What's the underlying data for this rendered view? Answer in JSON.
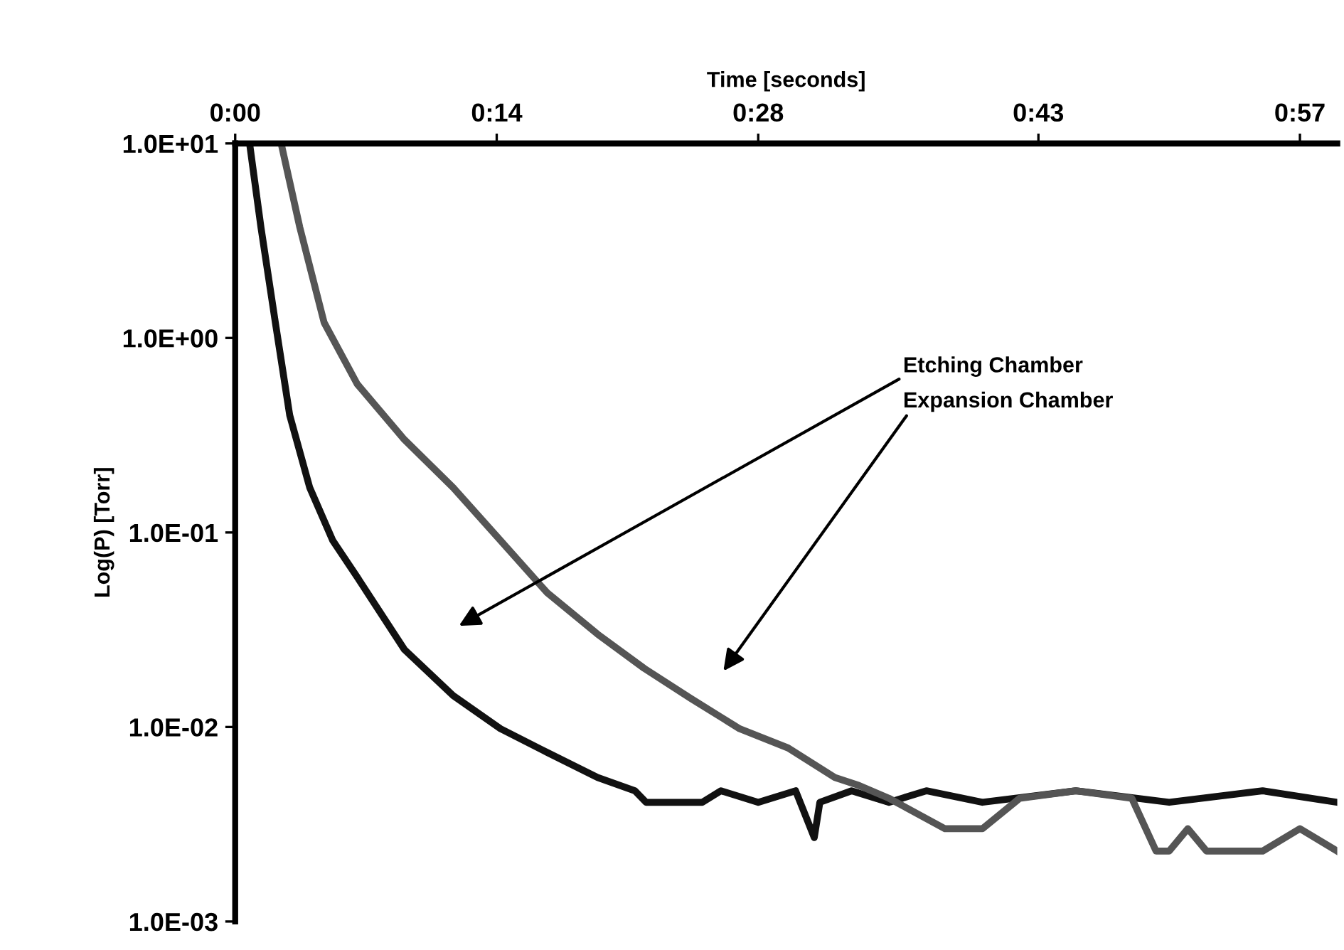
{
  "chart_data": {
    "type": "line",
    "xlabel": "Time [seconds]",
    "ylabel": "Log(P) [Torr]",
    "log": "y",
    "xlim": [
      0,
      59
    ],
    "xticks": [
      {
        "value": 0,
        "label": "0:00"
      },
      {
        "value": 14,
        "label": "0:14"
      },
      {
        "value": 28,
        "label": "0:28"
      },
      {
        "value": 43,
        "label": "0:43"
      },
      {
        "value": 57,
        "label": "0:57"
      }
    ],
    "ylim": [
      0.001,
      10
    ],
    "yticks": [
      {
        "value": 10,
        "label": "1.0E+01"
      },
      {
        "value": 1,
        "label": "1.0E+00"
      },
      {
        "value": 0.1,
        "label": "1.0E-01"
      },
      {
        "value": 0.01,
        "label": "1.0E-02"
      },
      {
        "value": 0.001,
        "label": "1.0E-03"
      }
    ],
    "grid": false,
    "series": [
      {
        "color": "#111111",
        "x": [
          0.77,
          1.38,
          2.15,
          2.92,
          3.99,
          5.22,
          6.53,
          9.06,
          11.67,
          14.2,
          16.7,
          19.4,
          21.4,
          22.0,
          25,
          26,
          28,
          30,
          31,
          31.3,
          33,
          35,
          37,
          40,
          45,
          50,
          55,
          59
        ],
        "values": [
          10,
          3.7,
          1.2,
          0.4,
          0.17,
          0.091,
          0.059,
          0.025,
          0.0145,
          0.0098,
          0.0074,
          0.0055,
          0.0047,
          0.0041,
          0.0041,
          0.0047,
          0.0041,
          0.0047,
          0.0027,
          0.0041,
          0.0047,
          0.0041,
          0.0047,
          0.0041,
          0.0047,
          0.0041,
          0.0047,
          0.0041
        ]
      },
      {
        "color": "#555555",
        "x": [
          2.46,
          3.46,
          4.76,
          6.53,
          9.06,
          11.67,
          14.2,
          16.7,
          19.4,
          21.9,
          24.4,
          27.0,
          29.6,
          32.1,
          33.4,
          35,
          38,
          40,
          42,
          45,
          48,
          49.3,
          50,
          51,
          52,
          55,
          57,
          59
        ],
        "values": [
          10,
          3.7,
          1.2,
          0.58,
          0.3,
          0.17,
          0.091,
          0.049,
          0.03,
          0.02,
          0.014,
          0.0098,
          0.0078,
          0.0055,
          0.005,
          0.0043,
          0.003,
          0.003,
          0.0043,
          0.0047,
          0.0043,
          0.0023,
          0.0023,
          0.003,
          0.0023,
          0.0023,
          0.003,
          0.0023
        ]
      }
    ],
    "annotations": [
      "Etching Chamber",
      "Expansion Chamber"
    ]
  }
}
